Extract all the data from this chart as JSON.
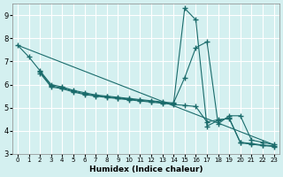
{
  "xlabel": "Humidex (Indice chaleur)",
  "bg_color": "#d4f0f0",
  "line_color": "#1a6b6b",
  "grid_color": "#ffffff",
  "xlim": [
    -0.5,
    23.5
  ],
  "ylim": [
    3,
    9.5
  ],
  "yticks": [
    3,
    4,
    5,
    6,
    7,
    8,
    9
  ],
  "xticks": [
    0,
    1,
    2,
    3,
    4,
    5,
    6,
    7,
    8,
    9,
    10,
    11,
    12,
    13,
    14,
    15,
    16,
    17,
    18,
    19,
    20,
    21,
    22,
    23
  ],
  "line1_x": [
    0,
    1,
    2,
    3,
    4,
    5,
    6,
    7,
    8,
    9,
    10,
    11,
    12,
    13,
    14,
    15,
    16,
    17,
    18,
    19,
    20,
    21,
    22,
    23
  ],
  "line1_y": [
    7.7,
    7.2,
    6.6,
    6.0,
    5.9,
    5.75,
    5.65,
    5.55,
    5.5,
    5.45,
    5.4,
    5.35,
    5.3,
    5.25,
    5.2,
    6.3,
    7.6,
    7.85,
    4.3,
    4.65,
    4.65,
    3.6,
    3.5,
    3.4
  ],
  "line2_x": [
    2,
    3,
    4,
    5,
    6,
    7,
    8,
    9,
    10,
    11,
    12,
    13,
    14,
    15,
    16,
    17,
    18,
    19,
    20,
    21,
    22,
    23
  ],
  "line2_y": [
    6.55,
    5.95,
    5.85,
    5.72,
    5.6,
    5.52,
    5.47,
    5.42,
    5.37,
    5.32,
    5.27,
    5.22,
    5.17,
    9.3,
    8.8,
    4.2,
    4.45,
    4.55,
    3.5,
    3.45,
    3.38,
    3.35
  ],
  "line3_x": [
    2,
    3,
    4,
    5,
    6,
    7,
    8,
    9,
    10,
    11,
    12,
    13,
    14,
    15,
    16,
    17,
    18,
    19,
    20,
    21,
    22,
    23
  ],
  "line3_y": [
    6.5,
    5.9,
    5.82,
    5.68,
    5.57,
    5.5,
    5.44,
    5.39,
    5.34,
    5.29,
    5.24,
    5.19,
    5.14,
    5.1,
    5.05,
    4.38,
    4.48,
    4.53,
    3.48,
    3.42,
    3.36,
    3.32
  ],
  "line4_x": [
    0,
    23
  ],
  "line4_y": [
    7.7,
    3.4
  ]
}
